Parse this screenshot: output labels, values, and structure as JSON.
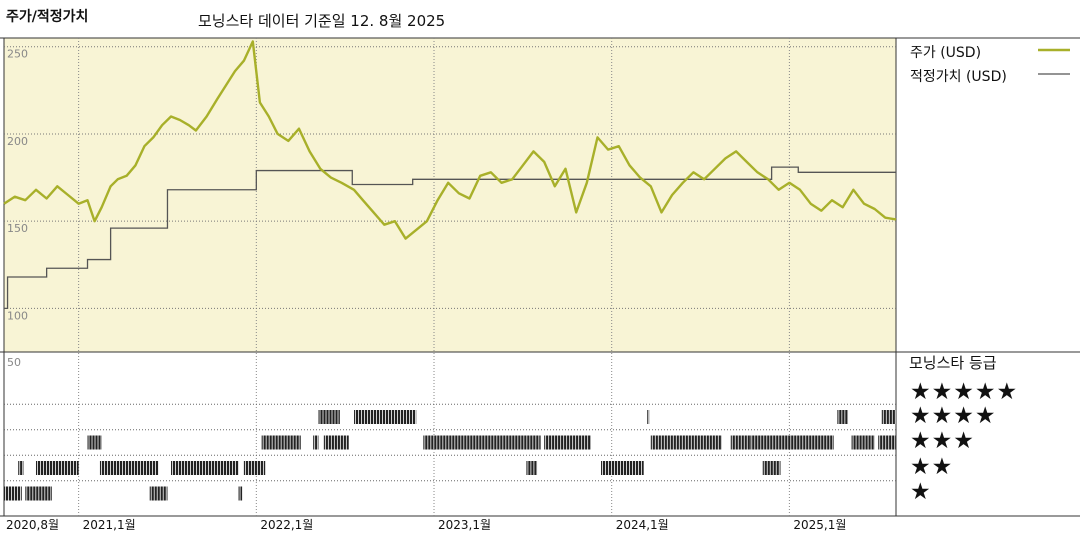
{
  "title": "주가/적정가치",
  "subtitle": "모닝스타 데이터 기준일 12. 8월 2025",
  "colors": {
    "price": "#a8b02a",
    "fair_value": "#555555",
    "panel_bg": "#f8f4d5",
    "bar": "#222222"
  },
  "chart_data": [
    {
      "type": "line",
      "ylim": [
        75,
        255
      ],
      "y_ticks": [
        "250",
        "200",
        "150",
        "100"
      ],
      "y_tick_values": [
        250,
        200,
        150,
        100
      ],
      "x_labels": [
        "2020,8월",
        "2021,1월",
        "2022,1월",
        "2023,1월",
        "2024,1월",
        "2025,1월"
      ],
      "x_label_dates": [
        2020.58,
        2021.0,
        2022.0,
        2023.0,
        2024.0,
        2025.0
      ],
      "x_range": [
        2020.58,
        2025.6
      ],
      "series": [
        {
          "name": "주가 (USD)",
          "points": [
            [
              2020.58,
              160
            ],
            [
              2020.64,
              164
            ],
            [
              2020.7,
              162
            ],
            [
              2020.76,
              168
            ],
            [
              2020.82,
              163
            ],
            [
              2020.88,
              170
            ],
            [
              2020.94,
              165
            ],
            [
              2021.0,
              160
            ],
            [
              2021.05,
              162
            ],
            [
              2021.09,
              150
            ],
            [
              2021.13,
              158
            ],
            [
              2021.18,
              170
            ],
            [
              2021.22,
              174
            ],
            [
              2021.27,
              176
            ],
            [
              2021.32,
              182
            ],
            [
              2021.37,
              193
            ],
            [
              2021.42,
              198
            ],
            [
              2021.47,
              205
            ],
            [
              2021.52,
              210
            ],
            [
              2021.57,
              208
            ],
            [
              2021.62,
              205
            ],
            [
              2021.66,
              202
            ],
            [
              2021.72,
              210
            ],
            [
              2021.78,
              220
            ],
            [
              2021.83,
              228
            ],
            [
              2021.88,
              236
            ],
            [
              2021.93,
              242
            ],
            [
              2021.98,
              253
            ],
            [
              2022.02,
              218
            ],
            [
              2022.07,
              210
            ],
            [
              2022.12,
              200
            ],
            [
              2022.18,
              196
            ],
            [
              2022.24,
              203
            ],
            [
              2022.3,
              190
            ],
            [
              2022.36,
              180
            ],
            [
              2022.42,
              175
            ],
            [
              2022.48,
              172
            ],
            [
              2022.55,
              168
            ],
            [
              2022.6,
              162
            ],
            [
              2022.66,
              155
            ],
            [
              2022.72,
              148
            ],
            [
              2022.78,
              150
            ],
            [
              2022.84,
              140
            ],
            [
              2022.9,
              145
            ],
            [
              2022.96,
              150
            ],
            [
              2023.02,
              162
            ],
            [
              2023.08,
              172
            ],
            [
              2023.14,
              166
            ],
            [
              2023.2,
              163
            ],
            [
              2023.26,
              176
            ],
            [
              2023.32,
              178
            ],
            [
              2023.38,
              172
            ],
            [
              2023.44,
              174
            ],
            [
              2023.5,
              182
            ],
            [
              2023.56,
              190
            ],
            [
              2023.62,
              184
            ],
            [
              2023.68,
              170
            ],
            [
              2023.74,
              180
            ],
            [
              2023.8,
              155
            ],
            [
              2023.86,
              172
            ],
            [
              2023.92,
              198
            ],
            [
              2023.98,
              191
            ],
            [
              2024.04,
              193
            ],
            [
              2024.1,
              182
            ],
            [
              2024.16,
              175
            ],
            [
              2024.22,
              170
            ],
            [
              2024.28,
              155
            ],
            [
              2024.34,
              165
            ],
            [
              2024.4,
              172
            ],
            [
              2024.46,
              178
            ],
            [
              2024.52,
              174
            ],
            [
              2024.58,
              180
            ],
            [
              2024.64,
              186
            ],
            [
              2024.7,
              190
            ],
            [
              2024.76,
              184
            ],
            [
              2024.82,
              178
            ],
            [
              2024.88,
              174
            ],
            [
              2024.94,
              168
            ],
            [
              2025.0,
              172
            ],
            [
              2025.06,
              168
            ],
            [
              2025.12,
              160
            ],
            [
              2025.18,
              156
            ],
            [
              2025.24,
              162
            ],
            [
              2025.3,
              158
            ],
            [
              2025.36,
              168
            ],
            [
              2025.42,
              160
            ],
            [
              2025.48,
              157
            ],
            [
              2025.54,
              152
            ],
            [
              2025.6,
              151
            ]
          ]
        },
        {
          "name": "적정가치 (USD)",
          "step": [
            [
              2020.58,
              100
            ],
            [
              2020.6,
              118
            ],
            [
              2020.82,
              123
            ],
            [
              2021.05,
              128
            ],
            [
              2021.18,
              146
            ],
            [
              2021.5,
              168
            ],
            [
              2022.0,
              179
            ],
            [
              2022.54,
              171
            ],
            [
              2022.88,
              174
            ],
            [
              2023.88,
              174
            ],
            [
              2024.9,
              181
            ],
            [
              2025.05,
              178
            ],
            [
              2025.6,
              178
            ]
          ]
        }
      ]
    },
    {
      "type": "bar",
      "label": "모닝스타 등급",
      "ymax_label": "50",
      "ratings": [
        "★★★★★",
        "★★★★",
        "★★★",
        "★★",
        "★"
      ],
      "rating_values": [
        5,
        4,
        3,
        2,
        1
      ],
      "segments": [
        [
          2020.58,
          2020.68,
          1
        ],
        [
          2020.7,
          2020.85,
          1
        ],
        [
          2020.66,
          2020.69,
          2
        ],
        [
          2020.76,
          2021.0,
          2
        ],
        [
          2021.05,
          2021.13,
          3
        ],
        [
          2021.12,
          2021.45,
          2
        ],
        [
          2021.4,
          2021.5,
          1
        ],
        [
          2021.52,
          2021.9,
          2
        ],
        [
          2021.9,
          2021.92,
          1
        ],
        [
          2021.93,
          2022.05,
          2
        ],
        [
          2022.03,
          2022.25,
          3
        ],
        [
          2022.32,
          2022.35,
          3
        ],
        [
          2022.38,
          2022.52,
          3
        ],
        [
          2022.35,
          2022.47,
          4
        ],
        [
          2022.55,
          2022.9,
          4
        ],
        [
          2022.94,
          2023.6,
          3
        ],
        [
          2023.52,
          2023.58,
          2
        ],
        [
          2023.62,
          2023.88,
          3
        ],
        [
          2023.94,
          2024.18,
          2
        ],
        [
          2024.2,
          2024.21,
          4
        ],
        [
          2024.22,
          2024.62,
          3
        ],
        [
          2024.67,
          2024.78,
          3
        ],
        [
          2024.78,
          2025.25,
          3
        ],
        [
          2024.85,
          2024.95,
          2
        ],
        [
          2025.27,
          2025.33,
          4
        ],
        [
          2025.35,
          2025.48,
          3
        ],
        [
          2025.52,
          2025.6,
          4
        ],
        [
          2025.5,
          2025.6,
          3
        ]
      ]
    }
  ]
}
